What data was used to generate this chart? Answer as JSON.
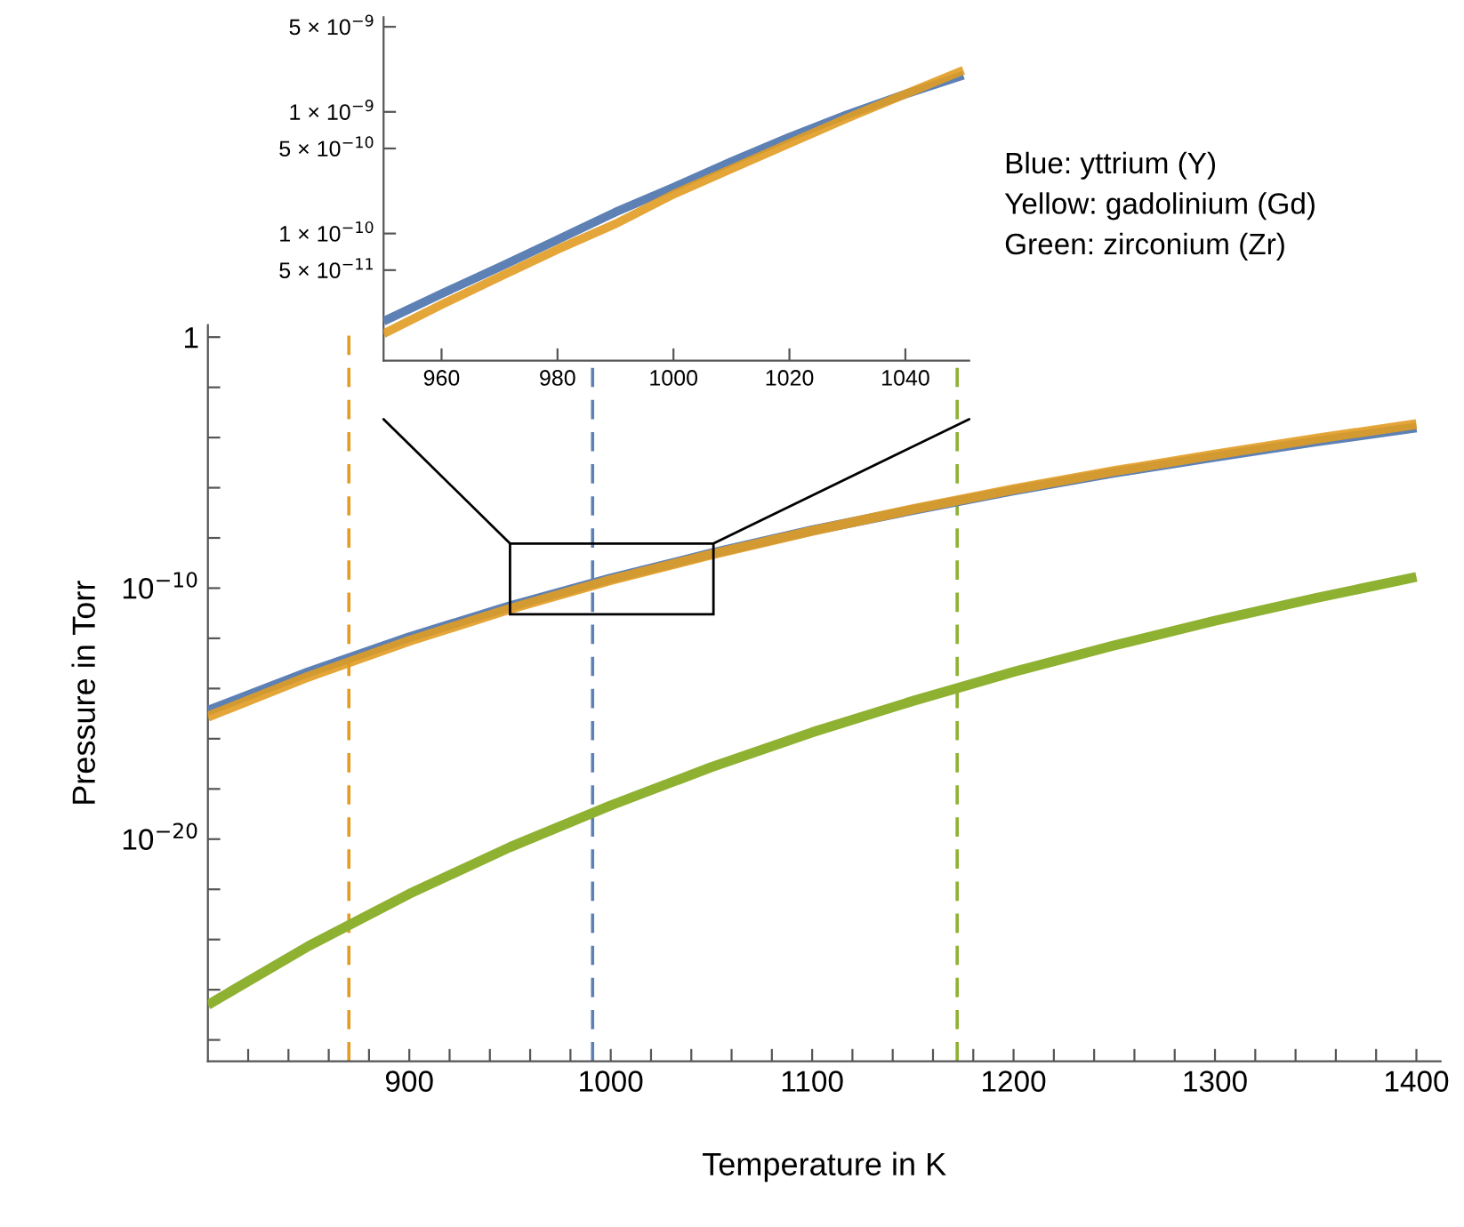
{
  "chart_data": [
    {
      "type": "line",
      "xlabel": "Temperature in K",
      "ylabel": "Pressure in Torr",
      "log": "y",
      "x": [
        800,
        850,
        900,
        950,
        1000,
        1050,
        1100,
        1150,
        1200,
        1250,
        1300,
        1350,
        1400
      ],
      "series": [
        {
          "color": "#5e81b5",
          "values": [
            1.3e-15,
            4.5e-14,
            1.1e-12,
            1.9e-11,
            2.4e-10,
            2.4e-09,
            2e-08,
            1.3e-07,
            7.8e-07,
            4e-06,
            1.7e-05,
            7e-05,
            0.00025
          ]
        },
        {
          "color": "#e19c24",
          "values": [
            7.6e-16,
            3e-14,
            7.9e-13,
            1.5e-11,
            2.1e-10,
            2.2e-09,
            1.9e-08,
            1.4e-07,
            8.7e-07,
            4.6e-06,
            2.1e-05,
            8.9e-05,
            0.00034
          ]
        },
        {
          "color": "#8fb131",
          "values": [
            2.5e-27,
            5.5e-25,
            6.6e-23,
            4.8e-21,
            2.2e-19,
            7.4e-18,
            1.8e-16,
            3.2e-15,
            4.6e-14,
            5.2e-13,
            5e-12,
            4e-11,
            2.8e-10
          ]
        }
      ],
      "xlim": [
        800,
        1412
      ],
      "ylim": [
        1.4e-29,
        3
      ],
      "xticks": [
        {
          "value": 820,
          "label": null
        },
        {
          "value": 840,
          "label": null
        },
        {
          "value": 860,
          "label": null
        },
        {
          "value": 880,
          "label": null
        },
        900,
        {
          "value": 920,
          "label": null
        },
        {
          "value": 940,
          "label": null
        },
        {
          "value": 960,
          "label": null
        },
        {
          "value": 980,
          "label": null
        },
        1000,
        {
          "value": 1020,
          "label": null
        },
        {
          "value": 1040,
          "label": null
        },
        {
          "value": 1060,
          "label": null
        },
        {
          "value": 1080,
          "label": null
        },
        1100,
        {
          "value": 1120,
          "label": null
        },
        {
          "value": 1140,
          "label": null
        },
        {
          "value": 1160,
          "label": null
        },
        {
          "value": 1180,
          "label": null
        },
        1200,
        {
          "value": 1220,
          "label": null
        },
        {
          "value": 1240,
          "label": null
        },
        {
          "value": 1260,
          "label": null
        },
        {
          "value": 1280,
          "label": null
        },
        1300,
        {
          "value": 1320,
          "label": null
        },
        {
          "value": 1340,
          "label": null
        },
        {
          "value": 1360,
          "label": null
        },
        {
          "value": 1380,
          "label": null
        },
        1400
      ],
      "yticks": [
        1,
        {
          "value": 0.01,
          "label": null
        },
        {
          "value": 0.0001,
          "label": null
        },
        {
          "value": 1e-06,
          "label": null
        },
        {
          "value": 1e-08,
          "label": null
        },
        {
          "value": 1e-10,
          "label": "10$^{−10}$"
        },
        {
          "value": 1e-12,
          "label": null
        },
        {
          "value": 1e-14,
          "label": null
        },
        {
          "value": 1e-16,
          "label": null
        },
        {
          "value": 1e-18,
          "label": null
        },
        {
          "value": 1e-20,
          "label": "10$^{−20}$"
        },
        {
          "value": 1e-22,
          "label": null
        },
        {
          "value": 1e-24,
          "label": null
        },
        {
          "value": 1e-26,
          "label": null
        },
        {
          "value": 1e-28,
          "label": null
        }
      ],
      "ref_lines": [
        {
          "axis": "x",
          "value": 870,
          "color": "#e19c24",
          "line_style": "dashed"
        },
        {
          "axis": "x",
          "value": 991,
          "color": "#5e81b5",
          "line_style": "dashed"
        },
        {
          "axis": "x",
          "value": 1172,
          "color": "#8fb131",
          "line_style": "dashed"
        }
      ],
      "annotations": [
        "Blue: yttrium (Y)",
        "Yellow: gadolinium (Gd)",
        "Green: zirconium (Zr)"
      ]
    },
    {
      "type": "line",
      "log": "y",
      "x": [
        950,
        960,
        970,
        980,
        990,
        1000,
        1010,
        1020,
        1030,
        1040,
        1050
      ],
      "series": [
        {
          "color": "#5e81b5",
          "values": [
            1.9e-11,
            3.2e-11,
            5.3e-11,
            8.9e-11,
            1.5e-10,
            2.4e-10,
            3.9e-10,
            6.2e-10,
            9.5e-10,
            1.4e-09,
            2e-09
          ]
        },
        {
          "color": "#e19c24",
          "values": [
            1.5e-11,
            2.6e-11,
            4.4e-11,
            7.4e-11,
            1.2e-10,
            2.1e-10,
            3.4e-10,
            5.5e-10,
            8.9e-10,
            1.4e-09,
            2.2e-09
          ]
        }
      ],
      "xlim": [
        950,
        1051
      ],
      "ylim": [
        9e-12,
        6e-09
      ],
      "xticks": [
        960,
        980,
        1000,
        1020,
        1040
      ],
      "yticks": [
        {
          "value": 5e-11,
          "label": "5 × 10$^{−11}$"
        },
        {
          "value": 1e-10,
          "label": "1 × 10$^{−10}$"
        },
        {
          "value": 5e-10,
          "label": "5 × 10$^{−10}$"
        },
        {
          "value": 1e-09,
          "label": "1 × 10$^{−9}$"
        },
        {
          "value": 5e-09,
          "label": "5 × 10$^{−9}$"
        }
      ]
    }
  ]
}
